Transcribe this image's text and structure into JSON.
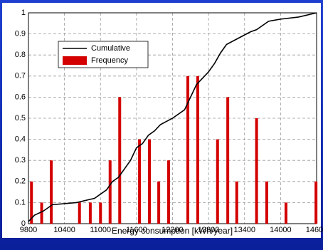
{
  "chart_data": {
    "type": "combo",
    "xlabel": "Energy consumption [kWh/year]",
    "xlim": [
      9800,
      14600
    ],
    "xticks": [
      9800,
      10400,
      11000,
      11600,
      12200,
      12800,
      13400,
      14000,
      14600
    ],
    "ylim": [
      0,
      1
    ],
    "yticks": [
      0,
      0.1,
      0.2,
      0.3,
      0.4,
      0.5,
      0.6,
      0.7,
      0.8,
      0.9,
      1
    ],
    "grid": true,
    "legend": "upper left",
    "series": [
      {
        "name": "Cumulative",
        "type": "line",
        "color": "#000000",
        "x": [
          9800,
          9900,
          10050,
          10200,
          10600,
          10900,
          11000,
          11100,
          11200,
          11300,
          11400,
          11500,
          11600,
          11700,
          11800,
          11900,
          12000,
          12200,
          12400,
          12500,
          12600,
          12800,
          12900,
          13000,
          13100,
          13300,
          13500,
          13600,
          13700,
          13800,
          14000,
          14300,
          14600
        ],
        "values": [
          0.01,
          0.04,
          0.06,
          0.09,
          0.1,
          0.12,
          0.14,
          0.16,
          0.2,
          0.22,
          0.26,
          0.3,
          0.36,
          0.38,
          0.42,
          0.44,
          0.47,
          0.5,
          0.54,
          0.6,
          0.66,
          0.72,
          0.76,
          0.81,
          0.85,
          0.88,
          0.91,
          0.92,
          0.94,
          0.96,
          0.97,
          0.98,
          1.0
        ]
      },
      {
        "name": "Frequency",
        "type": "bar",
        "color": "#d40000",
        "x": [
          9850,
          10020,
          10180,
          10650,
          10830,
          11000,
          11160,
          11320,
          11650,
          11815,
          11970,
          12135,
          12455,
          12620,
          12950,
          13120,
          13270,
          13600,
          13770,
          14090,
          14590
        ],
        "values": [
          0.2,
          0.1,
          0.3,
          0.1,
          0.1,
          0.1,
          0.3,
          0.6,
          0.4,
          0.4,
          0.2,
          0.3,
          0.7,
          0.7,
          0.4,
          0.6,
          0.2,
          0.5,
          0.2,
          0.1,
          0.2
        ]
      }
    ]
  }
}
